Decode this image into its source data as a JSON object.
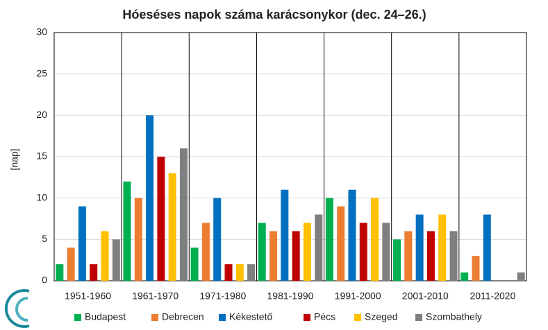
{
  "chart_data": {
    "type": "bar",
    "title": "Hóeséses napok száma karácsonykor (dec. 24–26.)",
    "y_label": "[nap]",
    "categories": [
      "1951-1960",
      "1961-1970",
      "1971-1980",
      "1981-1990",
      "1991-2000",
      "2001-2010",
      "2011-2020"
    ],
    "series": [
      {
        "name": "Budapest",
        "color": "#00b050",
        "values": [
          2,
          12,
          4,
          7,
          10,
          5,
          1
        ]
      },
      {
        "name": "Debrecen",
        "color": "#ed7d31",
        "values": [
          4,
          10,
          7,
          6,
          9,
          6,
          3
        ]
      },
      {
        "name": "Kékestető",
        "color": "#0070c0",
        "values": [
          9,
          20,
          10,
          11,
          11,
          8,
          8
        ]
      },
      {
        "name": "Pécs",
        "color": "#c00000",
        "values": [
          2,
          15,
          2,
          6,
          7,
          6,
          0
        ]
      },
      {
        "name": "Szeged",
        "color": "#ffc000",
        "values": [
          6,
          13,
          2,
          7,
          10,
          8,
          0
        ]
      },
      {
        "name": "Szombathely",
        "color": "#7f7f7f",
        "values": [
          5,
          16,
          2,
          8,
          7,
          6,
          1
        ]
      }
    ],
    "ylim": [
      0,
      30
    ],
    "yticks": [
      0,
      5,
      10,
      15,
      20,
      25,
      30
    ],
    "grid": true,
    "legend": "bottom"
  }
}
